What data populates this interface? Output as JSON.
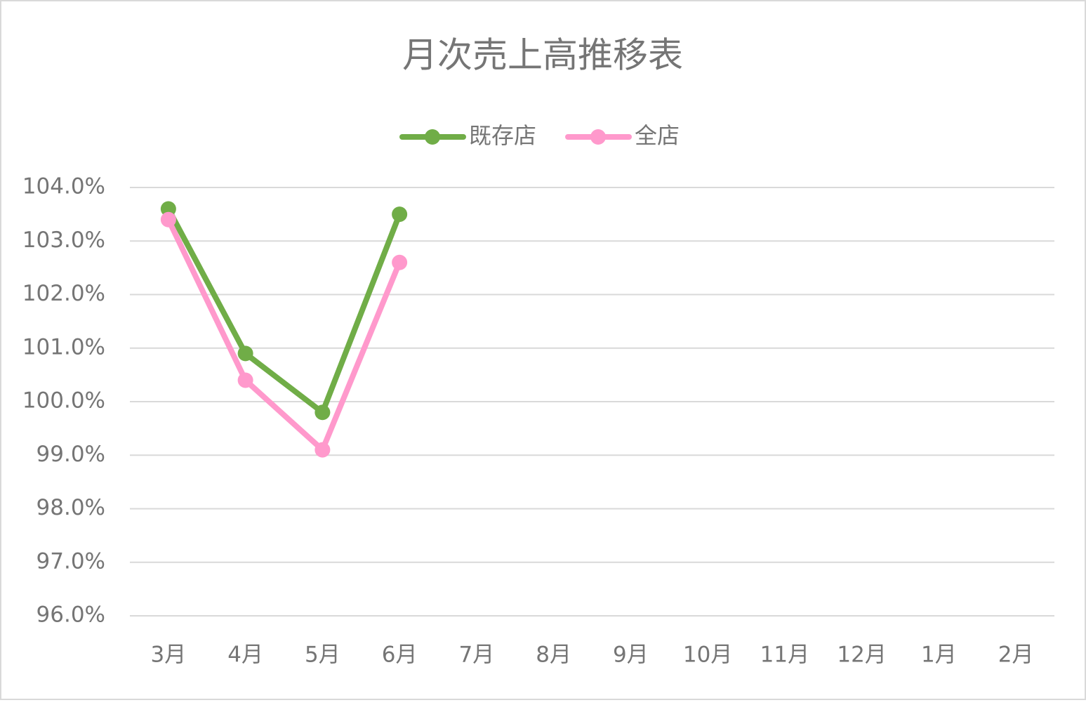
{
  "chart_data": {
    "type": "line",
    "title": "月次売上高推移表",
    "categories": [
      "3月",
      "4月",
      "5月",
      "6月",
      "7月",
      "8月",
      "9月",
      "10月",
      "11月",
      "12月",
      "1月",
      "2月"
    ],
    "series": [
      {
        "name": "既存店",
        "color": "#70ad47",
        "values": [
          103.6,
          100.9,
          99.8,
          103.5,
          null,
          null,
          null,
          null,
          null,
          null,
          null,
          null
        ]
      },
      {
        "name": "全店",
        "color": "#ff99cc",
        "values": [
          103.4,
          100.4,
          99.1,
          102.6,
          null,
          null,
          null,
          null,
          null,
          null,
          null,
          null
        ]
      }
    ],
    "ylim": [
      96,
      104
    ],
    "yticks": [
      {
        "value": 96,
        "label": "96.0%"
      },
      {
        "value": 97,
        "label": "97.0%"
      },
      {
        "value": 98,
        "label": "98.0%"
      },
      {
        "value": 99,
        "label": "99.0%"
      },
      {
        "value": 100,
        "label": "100.0%"
      },
      {
        "value": 101,
        "label": "101.0%"
      },
      {
        "value": 102,
        "label": "102.0%"
      },
      {
        "value": 103,
        "label": "103.0%"
      },
      {
        "value": 104,
        "label": "104.0%"
      }
    ],
    "grid": true,
    "legend": "top"
  }
}
